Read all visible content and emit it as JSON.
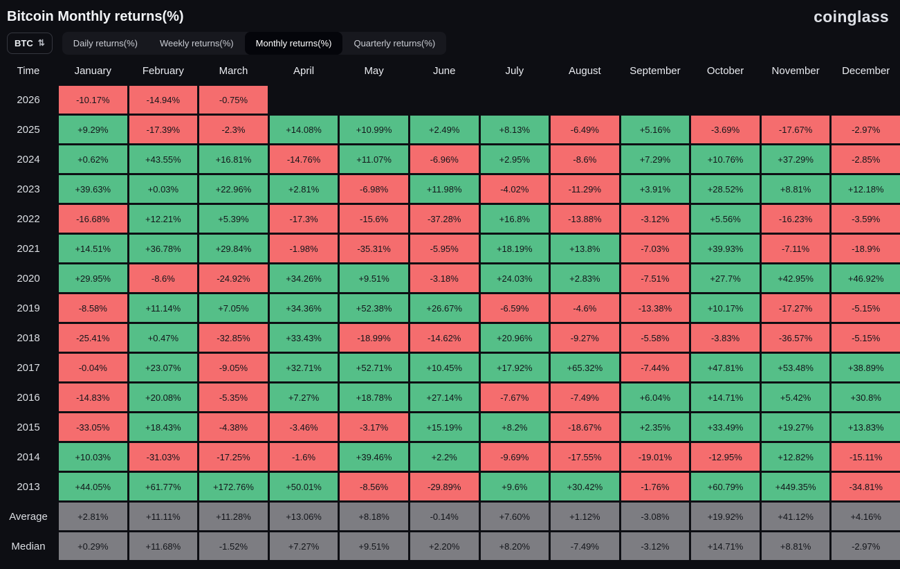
{
  "page": {
    "title": "Bitcoin Monthly returns(%)",
    "logo": "coinglass"
  },
  "controls": {
    "symbol": "BTC",
    "symbol_icon": "sort-arrows-icon",
    "tabs": [
      {
        "label": "Daily returns(%)",
        "active": false
      },
      {
        "label": "Weekly returns(%)",
        "active": false
      },
      {
        "label": "Monthly returns(%)",
        "active": true
      },
      {
        "label": "Quarterly returns(%)",
        "active": false
      }
    ]
  },
  "chart_data": {
    "type": "heatmap",
    "title": "Bitcoin Monthly returns(%)",
    "columns": [
      "Time",
      "January",
      "February",
      "March",
      "April",
      "May",
      "June",
      "July",
      "August",
      "September",
      "October",
      "November",
      "December"
    ],
    "colors": {
      "positive": "#55bf88",
      "negative": "#f56d6e",
      "summary": "#7d7d82"
    },
    "rows": [
      {
        "label": "2026",
        "summary": false,
        "values": [
          "-10.17%",
          "-14.94%",
          "-0.75%",
          "",
          "",
          "",
          "",
          "",
          "",
          "",
          "",
          ""
        ]
      },
      {
        "label": "2025",
        "summary": false,
        "values": [
          "+9.29%",
          "-17.39%",
          "-2.3%",
          "+14.08%",
          "+10.99%",
          "+2.49%",
          "+8.13%",
          "-6.49%",
          "+5.16%",
          "-3.69%",
          "-17.67%",
          "-2.97%"
        ]
      },
      {
        "label": "2024",
        "summary": false,
        "values": [
          "+0.62%",
          "+43.55%",
          "+16.81%",
          "-14.76%",
          "+11.07%",
          "-6.96%",
          "+2.95%",
          "-8.6%",
          "+7.29%",
          "+10.76%",
          "+37.29%",
          "-2.85%"
        ]
      },
      {
        "label": "2023",
        "summary": false,
        "values": [
          "+39.63%",
          "+0.03%",
          "+22.96%",
          "+2.81%",
          "-6.98%",
          "+11.98%",
          "-4.02%",
          "-11.29%",
          "+3.91%",
          "+28.52%",
          "+8.81%",
          "+12.18%"
        ]
      },
      {
        "label": "2022",
        "summary": false,
        "values": [
          "-16.68%",
          "+12.21%",
          "+5.39%",
          "-17.3%",
          "-15.6%",
          "-37.28%",
          "+16.8%",
          "-13.88%",
          "-3.12%",
          "+5.56%",
          "-16.23%",
          "-3.59%"
        ]
      },
      {
        "label": "2021",
        "summary": false,
        "values": [
          "+14.51%",
          "+36.78%",
          "+29.84%",
          "-1.98%",
          "-35.31%",
          "-5.95%",
          "+18.19%",
          "+13.8%",
          "-7.03%",
          "+39.93%",
          "-7.11%",
          "-18.9%"
        ]
      },
      {
        "label": "2020",
        "summary": false,
        "values": [
          "+29.95%",
          "-8.6%",
          "-24.92%",
          "+34.26%",
          "+9.51%",
          "-3.18%",
          "+24.03%",
          "+2.83%",
          "-7.51%",
          "+27.7%",
          "+42.95%",
          "+46.92%"
        ]
      },
      {
        "label": "2019",
        "summary": false,
        "values": [
          "-8.58%",
          "+11.14%",
          "+7.05%",
          "+34.36%",
          "+52.38%",
          "+26.67%",
          "-6.59%",
          "-4.6%",
          "-13.38%",
          "+10.17%",
          "-17.27%",
          "-5.15%"
        ]
      },
      {
        "label": "2018",
        "summary": false,
        "values": [
          "-25.41%",
          "+0.47%",
          "-32.85%",
          "+33.43%",
          "-18.99%",
          "-14.62%",
          "+20.96%",
          "-9.27%",
          "-5.58%",
          "-3.83%",
          "-36.57%",
          "-5.15%"
        ]
      },
      {
        "label": "2017",
        "summary": false,
        "values": [
          "-0.04%",
          "+23.07%",
          "-9.05%",
          "+32.71%",
          "+52.71%",
          "+10.45%",
          "+17.92%",
          "+65.32%",
          "-7.44%",
          "+47.81%",
          "+53.48%",
          "+38.89%"
        ]
      },
      {
        "label": "2016",
        "summary": false,
        "values": [
          "-14.83%",
          "+20.08%",
          "-5.35%",
          "+7.27%",
          "+18.78%",
          "+27.14%",
          "-7.67%",
          "-7.49%",
          "+6.04%",
          "+14.71%",
          "+5.42%",
          "+30.8%"
        ]
      },
      {
        "label": "2015",
        "summary": false,
        "values": [
          "-33.05%",
          "+18.43%",
          "-4.38%",
          "-3.46%",
          "-3.17%",
          "+15.19%",
          "+8.2%",
          "-18.67%",
          "+2.35%",
          "+33.49%",
          "+19.27%",
          "+13.83%"
        ]
      },
      {
        "label": "2014",
        "summary": false,
        "values": [
          "+10.03%",
          "-31.03%",
          "-17.25%",
          "-1.6%",
          "+39.46%",
          "+2.2%",
          "-9.69%",
          "-17.55%",
          "-19.01%",
          "-12.95%",
          "+12.82%",
          "-15.11%"
        ]
      },
      {
        "label": "2013",
        "summary": false,
        "values": [
          "+44.05%",
          "+61.77%",
          "+172.76%",
          "+50.01%",
          "-8.56%",
          "-29.89%",
          "+9.6%",
          "+30.42%",
          "-1.76%",
          "+60.79%",
          "+449.35%",
          "-34.81%"
        ]
      },
      {
        "label": "Average",
        "summary": true,
        "values": [
          "+2.81%",
          "+11.11%",
          "+11.28%",
          "+13.06%",
          "+8.18%",
          "-0.14%",
          "+7.60%",
          "+1.12%",
          "-3.08%",
          "+19.92%",
          "+41.12%",
          "+4.16%"
        ]
      },
      {
        "label": "Median",
        "summary": true,
        "values": [
          "+0.29%",
          "+11.68%",
          "-1.52%",
          "+7.27%",
          "+9.51%",
          "+2.20%",
          "+8.20%",
          "-7.49%",
          "-3.12%",
          "+14.71%",
          "+8.81%",
          "-2.97%"
        ]
      }
    ]
  }
}
